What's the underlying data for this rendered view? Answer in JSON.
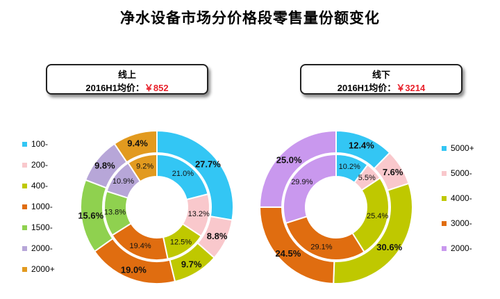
{
  "title": "净水设备市场分价格段零售量份额变化",
  "chart_data": [
    {
      "type": "donut",
      "panel": "online",
      "box": {
        "title": "线上",
        "subtitle_prefix": "2016H1均价：",
        "price": "￥852"
      },
      "categories": [
        "100-",
        "200-",
        "400-",
        "1000-",
        "1500-",
        "2000-",
        "2000+"
      ],
      "colors": [
        "#33c6f4",
        "#f9c8cc",
        "#bfc800",
        "#e06d10",
        "#8fd14f",
        "#b7a6d8",
        "#e29a1f"
      ],
      "series": [
        {
          "ring": "outer",
          "values": [
            27.7,
            8.8,
            9.7,
            19.0,
            15.6,
            9.8,
            9.4
          ],
          "labels": [
            "27.7%",
            "8.8%",
            "9.7%",
            "19.0%",
            "15.6%",
            "9.8%",
            "9.4%"
          ]
        },
        {
          "ring": "inner",
          "values": [
            21.0,
            13.2,
            12.5,
            19.4,
            13.8,
            10.9,
            9.2
          ],
          "labels": [
            "21.0%",
            "13.2%",
            "12.5%",
            "19.4%",
            "13.8%",
            "10.9%",
            "9.2%"
          ]
        }
      ],
      "legend_placement": "left"
    },
    {
      "type": "donut",
      "panel": "offline",
      "box": {
        "title": "线下",
        "subtitle_prefix": "2016H1均价：",
        "price": "￥3214"
      },
      "categories": [
        "5000+",
        "5000-",
        "4000-",
        "3000-",
        "2000-"
      ],
      "colors": [
        "#33c6f4",
        "#f9c8cc",
        "#bfc800",
        "#e06d10",
        "#c998ee"
      ],
      "series": [
        {
          "ring": "outer",
          "values": [
            12.4,
            7.6,
            30.6,
            24.5,
            25.0
          ],
          "labels": [
            "12.4%",
            "7.6%",
            "30.6%",
            "24.5%",
            "25.0%"
          ]
        },
        {
          "ring": "inner",
          "values": [
            10.2,
            5.5,
            25.4,
            29.1,
            29.9
          ],
          "labels": [
            "10.2%",
            "5.5%",
            "25.4%",
            "29.1%",
            "29.9%"
          ]
        }
      ],
      "legend_placement": "right"
    }
  ]
}
